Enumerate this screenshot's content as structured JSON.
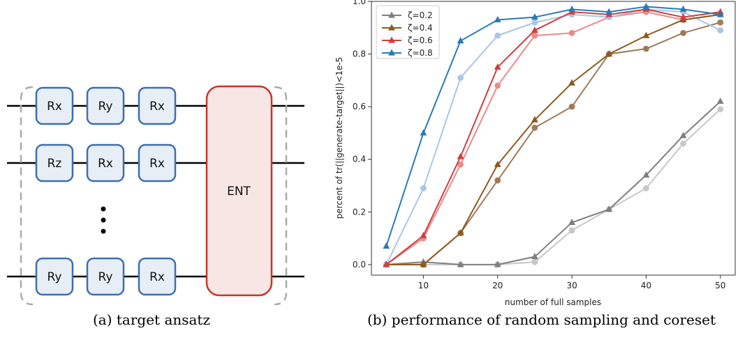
{
  "figure": {
    "caption_a": "(a) target ansatz",
    "caption_b": "(b) performance of random sampling and coreset"
  },
  "circuit": {
    "rows": [
      [
        "Rx",
        "Ry",
        "Rx"
      ],
      [
        "Rz",
        "Rx",
        "Rx"
      ],
      [
        "Ry",
        "Ry",
        "Rx"
      ]
    ],
    "ent_label": "ENT",
    "colors": {
      "gate_fill": "#e8eef6",
      "gate_stroke": "#3d6fb0",
      "ent_fill": "#f7e6e4",
      "ent_stroke": "#c2362c",
      "dashed": "#aaaaaa"
    }
  },
  "chart_data": {
    "type": "line",
    "xlabel": "number of full samples",
    "ylabel": "percent of tr(||generate-target||)<1e-5",
    "xlim": [
      3,
      52
    ],
    "ylim": [
      -0.04,
      1.0
    ],
    "xticks": [
      10,
      20,
      30,
      40,
      50
    ],
    "yticks": [
      0.0,
      0.2,
      0.4,
      0.6,
      0.8,
      1.0
    ],
    "xtick_labels": [
      "10",
      "20",
      "30",
      "40",
      "50"
    ],
    "ytick_labels": [
      "0.0",
      "0.2",
      "0.4",
      "0.6",
      "0.8",
      "1.0"
    ],
    "legend_position": "upper-left",
    "x": [
      5,
      10,
      15,
      20,
      25,
      30,
      35,
      40,
      45,
      50
    ],
    "series": [
      {
        "name": "ζ=0.2",
        "marker": "triangle",
        "color": "#7f7f7f",
        "values": [
          0.0,
          0.01,
          0.0,
          0.0,
          0.03,
          0.16,
          0.21,
          0.34,
          0.49,
          0.62
        ]
      },
      {
        "name": "ζ=0.4",
        "marker": "triangle",
        "color": "#8c5a1e",
        "values": [
          0.0,
          0.0,
          0.12,
          0.38,
          0.55,
          0.69,
          0.8,
          0.87,
          0.93,
          0.95
        ]
      },
      {
        "name": "ζ=0.6",
        "marker": "triangle",
        "color": "#d03e3e",
        "values": [
          0.0,
          0.11,
          0.41,
          0.75,
          0.89,
          0.96,
          0.95,
          0.97,
          0.94,
          0.96
        ]
      },
      {
        "name": "ζ=0.8",
        "marker": "triangle",
        "color": "#2a7ab8",
        "values": [
          0.07,
          0.5,
          0.85,
          0.93,
          0.94,
          0.97,
          0.96,
          0.98,
          0.97,
          0.95
        ]
      },
      {
        "name": "",
        "marker": "circle",
        "color": "#c8c8c8",
        "values": [
          0.0,
          0.0,
          0.0,
          0.0,
          0.01,
          0.13,
          0.21,
          0.29,
          0.46,
          0.59
        ]
      },
      {
        "name": "",
        "marker": "circle",
        "color": "#a07a5a",
        "values": [
          0.0,
          0.0,
          0.12,
          0.32,
          0.52,
          0.6,
          0.8,
          0.82,
          0.88,
          0.92
        ]
      },
      {
        "name": "",
        "marker": "circle",
        "color": "#ec8a8a",
        "values": [
          0.0,
          0.1,
          0.38,
          0.68,
          0.87,
          0.88,
          0.94,
          0.96,
          0.93,
          0.95
        ]
      },
      {
        "name": "",
        "marker": "circle",
        "color": "#a9c6e8",
        "values": [
          0.0,
          0.29,
          0.71,
          0.87,
          0.92,
          0.95,
          0.94,
          0.97,
          0.96,
          0.89
        ]
      }
    ]
  }
}
